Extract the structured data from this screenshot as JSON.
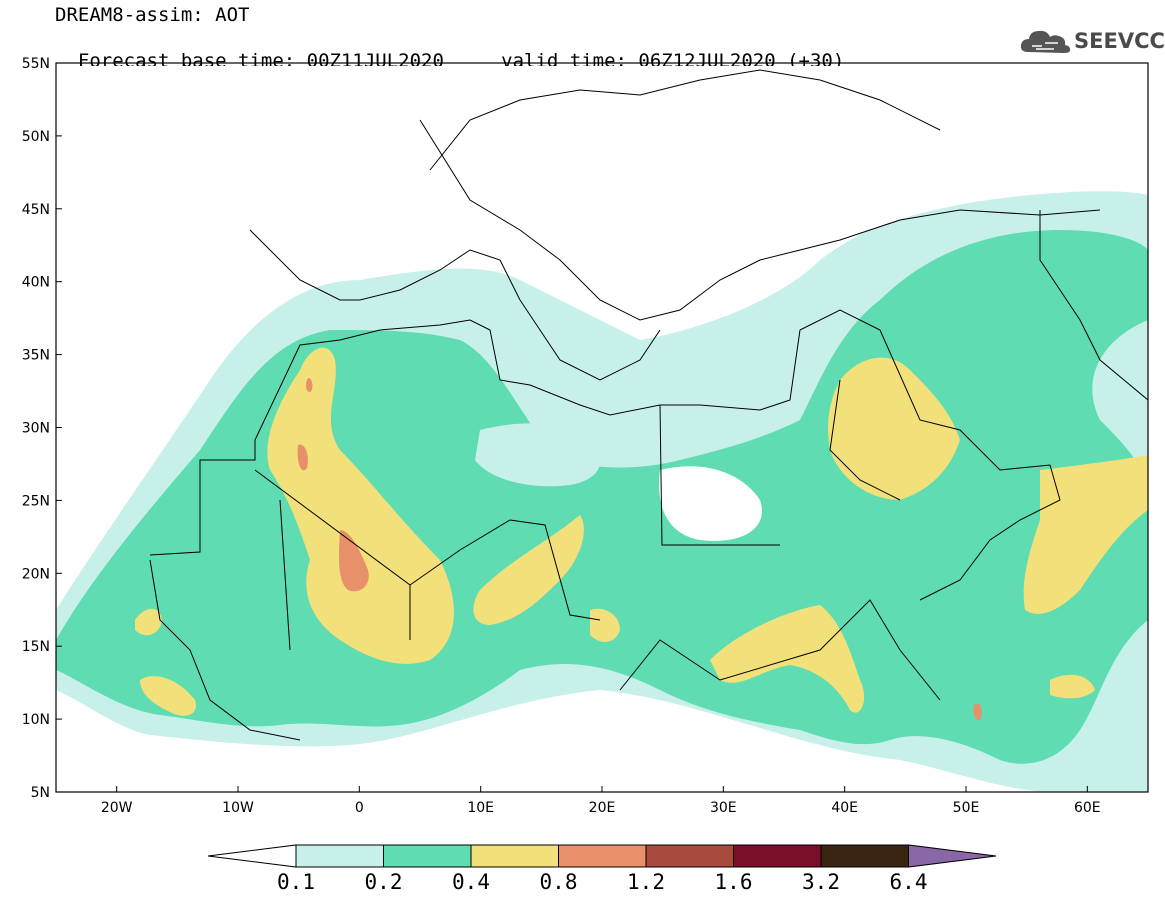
{
  "header": {
    "title": "DREAM8-assim: AOT",
    "base_time": "Forecast base time: 00Z11JUL2020",
    "valid_time": "valid time: 06Z12JUL2020 (+30)",
    "logo_text": "SEEVCCC"
  },
  "axes": {
    "lat_labels": [
      "55N",
      "50N",
      "45N",
      "40N",
      "35N",
      "30N",
      "25N",
      "20N",
      "15N",
      "10N",
      "5N"
    ],
    "lon_labels": [
      "20W",
      "10W",
      "0",
      "10E",
      "20E",
      "30E",
      "40E",
      "50E",
      "60E"
    ],
    "lon_range": [
      -25,
      65
    ],
    "lat_range": [
      5,
      55
    ]
  },
  "legend": {
    "labels": [
      "0.1",
      "0.2",
      "0.4",
      "0.8",
      "1.2",
      "1.6",
      "3.2",
      "6.4"
    ],
    "colors": [
      "#c8f0ea",
      "#5fdcb1",
      "#f2e17a",
      "#e8906a",
      "#a94b3c",
      "#7a0f2a",
      "#3a2513",
      "#8a67a6"
    ]
  }
}
